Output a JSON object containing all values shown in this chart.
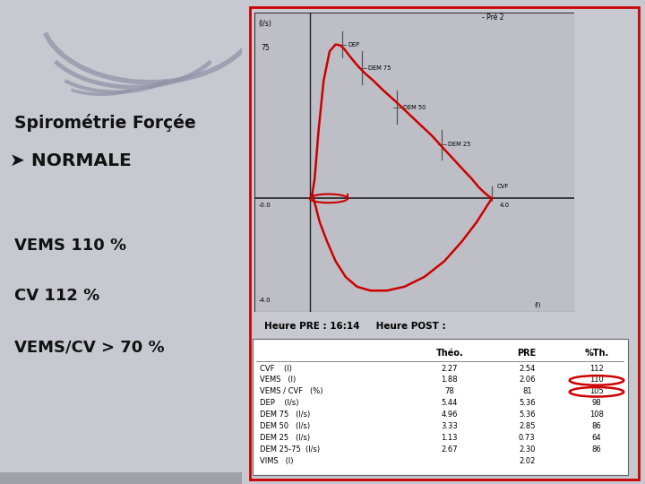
{
  "bg_color": "#c8c8d0",
  "left_bg": "#dcdce4",
  "title": "Spirométrie Forçée",
  "arrow_normal": "➜ NORMALE",
  "line1": "VEMS 110 %",
  "line2": "CV 112 %",
  "line3": "VEMS/CV > 70 %",
  "text_color": "#000000",
  "chart_bg": "#b8b8c0",
  "chart_border_color": "#cc0000",
  "curve_color": "#cc0000",
  "heure_pre": "Heure PRE : 16:14",
  "heure_post": "Heure POST :",
  "pre2_label": "- Pré 2",
  "table_headers": [
    "Théo.",
    "PRE",
    "%Th."
  ],
  "table_rows": [
    [
      "CVF    (l)",
      "2.27",
      "2.54",
      "112",
      false
    ],
    [
      "VEMS   (l)",
      "1.88",
      "2.06",
      "110",
      true
    ],
    [
      "VEMS / CVF   (%)",
      "78",
      "81",
      "105",
      true
    ],
    [
      "DEP    (l/s)",
      "5.44",
      "5.36",
      "98",
      false
    ],
    [
      "DEM 75   (l/s)",
      "4.96",
      "5.36",
      "108",
      false
    ],
    [
      "DEM 50   (l/s)",
      "3.33",
      "2.85",
      "86",
      false
    ],
    [
      "DEM 25   (l/s)",
      "1.13",
      "0.73",
      "64",
      false
    ],
    [
      "DEM 25-75  (l/s)",
      "2.67",
      "2.30",
      "86",
      false
    ],
    [
      "VIMS   (l)",
      "",
      "2.02",
      "",
      false
    ]
  ],
  "circle_color": "#cc0000"
}
